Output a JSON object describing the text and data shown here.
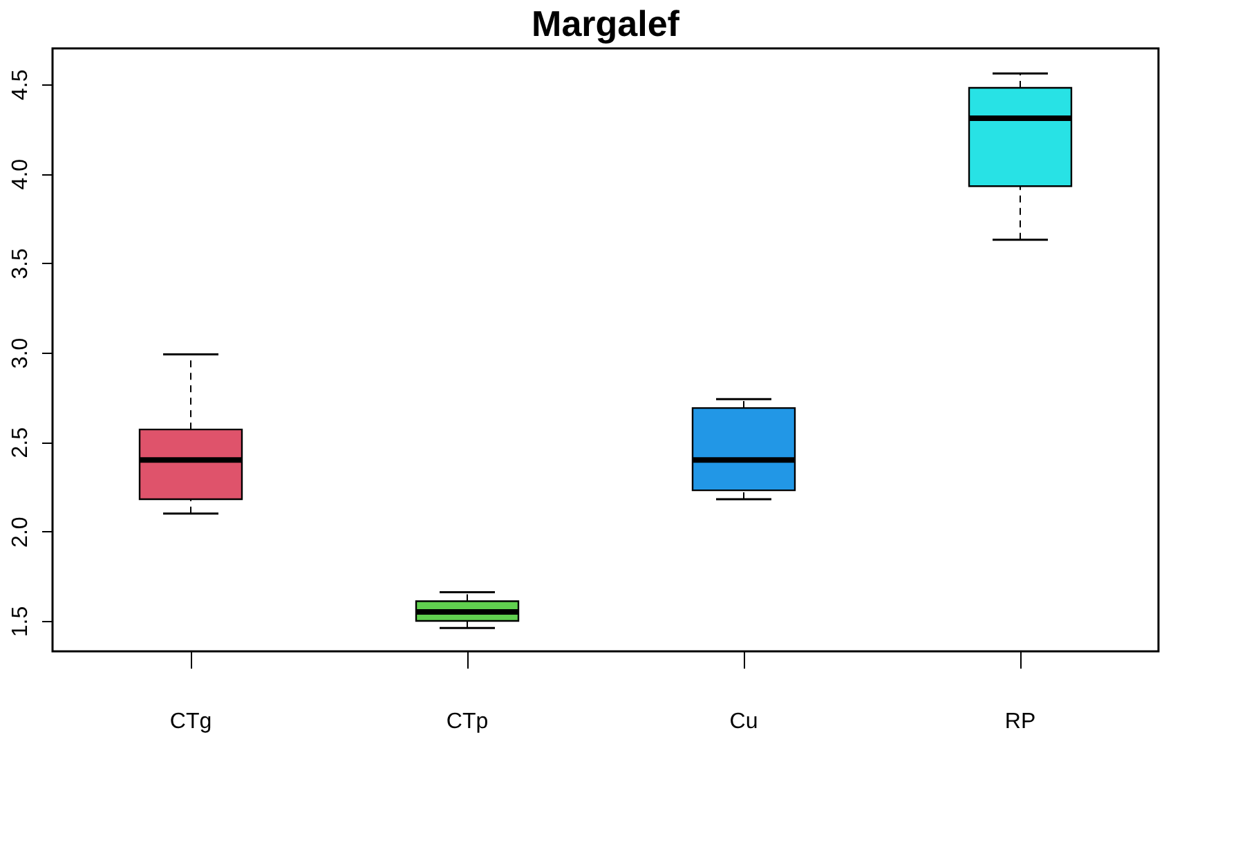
{
  "chart_data": {
    "type": "box",
    "title": "Margalef",
    "categories": [
      "CTg",
      "CTp",
      "Cu",
      "RP"
    ],
    "colors": [
      "#df536b",
      "#61d04f",
      "#2297e6",
      "#28e2e5"
    ],
    "boxes": [
      {
        "low": 2.1,
        "q1": 2.18,
        "median": 2.4,
        "q3": 2.57,
        "high": 2.99
      },
      {
        "low": 1.46,
        "q1": 1.5,
        "median": 1.55,
        "q3": 1.61,
        "high": 1.66
      },
      {
        "low": 2.18,
        "q1": 2.23,
        "median": 2.4,
        "q3": 2.69,
        "high": 2.74
      },
      {
        "low": 3.63,
        "q1": 3.93,
        "median": 4.31,
        "q3": 4.48,
        "high": 4.56
      }
    ],
    "ylim": [
      1.33,
      4.7
    ],
    "yticks": [
      1.5,
      {
        "value": 2,
        "label": "2.0"
      },
      2.5,
      {
        "value": 3,
        "label": "3.0"
      },
      3.5,
      {
        "value": 4,
        "label": "4.0"
      },
      4.5
    ],
    "grid": false
  }
}
